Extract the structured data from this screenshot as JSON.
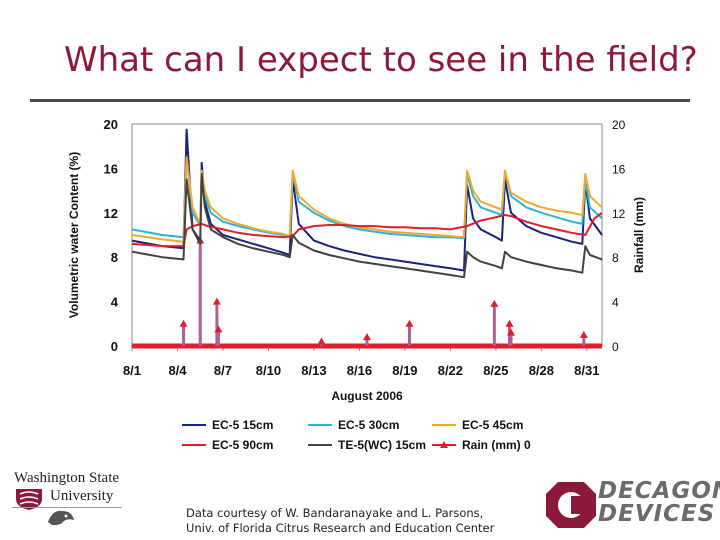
{
  "slide": {
    "title": "What can I expect to see in the field?",
    "credit_line1": "Data courtesy of W. Bandaranayake and L. Parsons,",
    "credit_line2": "Univ. of Florida Citrus Research and Education Center"
  },
  "logos": {
    "wsu_line1": "Washington State",
    "wsu_line2": "University",
    "decagon_line1": "DECAGON",
    "decagon_line2": "DEVICES"
  },
  "chart_data": {
    "type": "line",
    "title": "",
    "xlabel": "August 2006",
    "ylabel": "Volumetric water Content (%)",
    "y2label": "Rainfall (mm)",
    "xlim": [
      1,
      32
    ],
    "ylim": [
      0,
      20
    ],
    "y2lim": [
      0,
      20
    ],
    "yticks": [
      0,
      4,
      8,
      12,
      16,
      20
    ],
    "y2ticks": [
      0,
      4,
      8,
      12,
      16,
      20
    ],
    "xtick_positions": [
      1,
      4,
      7,
      10,
      13,
      16,
      19,
      22,
      25,
      28,
      31
    ],
    "xtick_labels": [
      "8/1",
      "8/4",
      "8/7",
      "8/10",
      "8/13",
      "8/16",
      "8/19",
      "8/22",
      "8/25",
      "8/28",
      "8/31"
    ],
    "grid": false,
    "legend_placement": "bottom",
    "series": [
      {
        "name": "EC-5 15cm",
        "color": "#1a237e",
        "axis": "left",
        "x": [
          1,
          3,
          4.4,
          4.6,
          5,
          5.5,
          5.6,
          5.8,
          6.2,
          7,
          8,
          9,
          10,
          11,
          11.4,
          11.6,
          12,
          13,
          14,
          15,
          16,
          17,
          18,
          19,
          20,
          21,
          22,
          22.9,
          23.1,
          23.5,
          24,
          25,
          25.4,
          25.6,
          26,
          27,
          28,
          29,
          30,
          30.7,
          30.9,
          31.2,
          32
        ],
        "y": [
          9.5,
          9.0,
          8.8,
          19.5,
          10.5,
          9.5,
          16.5,
          13.0,
          11.0,
          10.0,
          9.6,
          9.2,
          8.8,
          8.4,
          8.2,
          15.0,
          11.0,
          9.5,
          9.0,
          8.6,
          8.3,
          8.0,
          7.8,
          7.6,
          7.4,
          7.2,
          7.0,
          6.8,
          14.5,
          11.5,
          10.5,
          9.8,
          9.5,
          15.0,
          12.0,
          10.8,
          10.2,
          9.8,
          9.4,
          9.2,
          14.8,
          11.5,
          10.0
        ]
      },
      {
        "name": "EC-5 30cm",
        "color": "#29b6d6",
        "axis": "left",
        "x": [
          1,
          3,
          4.4,
          4.6,
          5,
          5.5,
          5.6,
          5.8,
          6.2,
          7,
          8,
          9,
          10,
          11,
          11.4,
          11.6,
          12,
          13,
          14,
          15,
          16,
          17,
          18,
          19,
          20,
          21,
          22,
          22.9,
          23.1,
          23.5,
          24,
          25,
          25.4,
          25.6,
          26,
          27,
          28,
          29,
          30,
          30.7,
          30.9,
          31.2,
          32
        ],
        "y": [
          10.5,
          10.0,
          9.8,
          17.0,
          12.0,
          10.8,
          15.5,
          13.5,
          12.0,
          11.2,
          10.8,
          10.5,
          10.2,
          10.0,
          9.8,
          15.5,
          13.0,
          12.0,
          11.3,
          10.8,
          10.5,
          10.3,
          10.1,
          10.0,
          9.9,
          9.8,
          9.8,
          9.7,
          15.5,
          13.5,
          12.5,
          12.0,
          11.8,
          15.8,
          13.5,
          12.5,
          12.0,
          11.6,
          11.2,
          11.0,
          15.0,
          12.5,
          11.5
        ]
      },
      {
        "name": "EC-5 45cm",
        "color": "#f0a830",
        "axis": "left",
        "x": [
          1,
          3,
          4.4,
          4.6,
          5,
          5.5,
          5.6,
          5.8,
          6.2,
          7,
          8,
          9,
          10,
          11,
          11.4,
          11.6,
          12,
          13,
          14,
          15,
          16,
          17,
          18,
          19,
          20,
          21,
          22,
          22.9,
          23.1,
          23.5,
          24,
          25,
          25.4,
          25.6,
          26,
          27,
          28,
          29,
          30,
          30.7,
          30.9,
          31.2,
          32
        ],
        "y": [
          10.0,
          9.6,
          9.4,
          17.0,
          12.5,
          11.0,
          15.8,
          14.0,
          12.5,
          11.5,
          11.0,
          10.6,
          10.3,
          10.1,
          9.9,
          15.8,
          13.5,
          12.3,
          11.5,
          11.0,
          10.7,
          10.5,
          10.3,
          10.2,
          10.1,
          10.0,
          9.9,
          9.8,
          15.8,
          14.0,
          13.0,
          12.5,
          12.3,
          15.8,
          13.8,
          13.0,
          12.5,
          12.2,
          12.0,
          11.8,
          15.5,
          13.5,
          12.5
        ]
      },
      {
        "name": "EC-5 90cm",
        "color": "#e01e2b",
        "axis": "left",
        "x": [
          1,
          3,
          4.4,
          4.6,
          5,
          5.6,
          6,
          7,
          8,
          9,
          10,
          11,
          11.6,
          12,
          13,
          14,
          15,
          16,
          17,
          18,
          19,
          20,
          21,
          22,
          23.1,
          24,
          25,
          25.6,
          26,
          27,
          28,
          29,
          30,
          30.9,
          31.5,
          32
        ],
        "y": [
          9.2,
          9.0,
          9.0,
          10.5,
          10.8,
          11.0,
          10.8,
          10.5,
          10.2,
          10.0,
          9.9,
          9.8,
          9.9,
          10.5,
          10.8,
          10.9,
          10.9,
          10.8,
          10.8,
          10.7,
          10.7,
          10.6,
          10.6,
          10.5,
          10.8,
          11.3,
          11.6,
          11.8,
          11.7,
          11.2,
          10.8,
          10.5,
          10.2,
          10.0,
          11.5,
          12.0
        ]
      },
      {
        "name": "TE-5(WC) 15cm",
        "color": "#424242",
        "axis": "left",
        "x": [
          1,
          3,
          4.4,
          4.6,
          5,
          5.5,
          5.6,
          5.8,
          6.2,
          7,
          8,
          9,
          10,
          11,
          11.4,
          11.6,
          12,
          13,
          14,
          15,
          16,
          17,
          18,
          19,
          20,
          21,
          22,
          22.9,
          23.1,
          23.5,
          24,
          25,
          25.4,
          25.6,
          26,
          27,
          28,
          29,
          30,
          30.7,
          30.9,
          31.2,
          32
        ],
        "y": [
          8.5,
          8.0,
          7.8,
          15.0,
          10.5,
          9.2,
          15.5,
          12.5,
          10.5,
          9.8,
          9.2,
          8.8,
          8.5,
          8.2,
          8.0,
          10.0,
          9.3,
          8.6,
          8.2,
          7.9,
          7.6,
          7.4,
          7.2,
          7.0,
          6.8,
          6.6,
          6.4,
          6.2,
          8.5,
          8.0,
          7.6,
          7.2,
          7.0,
          8.5,
          8.0,
          7.6,
          7.3,
          7.0,
          6.8,
          6.6,
          9.0,
          8.2,
          7.8
        ]
      }
    ],
    "rain": {
      "name": "Rain (mm) 0",
      "color": "#e01e2b",
      "axis": "right",
      "x": [
        4.4,
        5.5,
        6.6,
        6.7,
        13.5,
        16.5,
        19.3,
        24.9,
        25.9,
        26.0,
        30.8
      ],
      "y": [
        2.0,
        9.5,
        4.0,
        1.5,
        0.4,
        0.8,
        2.0,
        3.8,
        2.0,
        1.2,
        1.0
      ]
    }
  }
}
